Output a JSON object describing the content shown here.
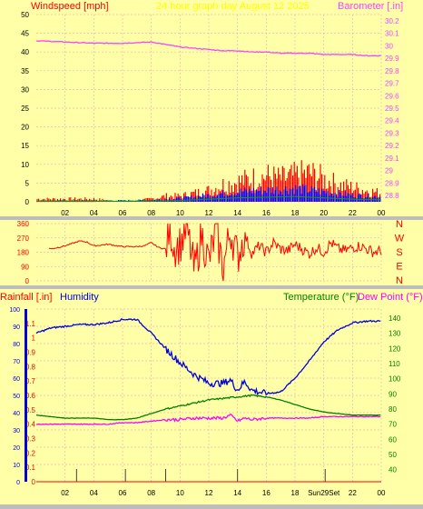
{
  "header": {
    "left_label": "Windspeed [mph]",
    "center_label": "24 hour graph day   August 12 2025",
    "right_label": "Barometer [.in]"
  },
  "colors": {
    "plot_bg": "#ffffa8",
    "frame_bg": "#bdbdbd",
    "grid": "#e8b8b8",
    "wind": "#ff0000",
    "gust_fill": "#0000ff",
    "wind_avg": "#00aa00",
    "barometer": "#ff40ff",
    "humidity": "#0000dd",
    "temperature": "#008000",
    "dewpoint": "#ff00ff",
    "rain": "#ff0000",
    "header_yellow": "#ffff00",
    "day_marker": "#404040"
  },
  "chart_data": [
    {
      "type": "line",
      "panel": "wind",
      "title": "24 hour graph day   August 12 2025",
      "x_ticks": [
        "02",
        "04",
        "06",
        "08",
        "10",
        "12",
        "14",
        "16",
        "18",
        "20",
        "22",
        "00"
      ],
      "xlim": [
        0,
        24
      ],
      "ylabel_left": "Windspeed [mph]",
      "ylim_left": [
        0,
        50
      ],
      "y_ticks_left": [
        "0",
        "5",
        "10",
        "15",
        "20",
        "25",
        "30",
        "35",
        "40",
        "45",
        "50"
      ],
      "ylabel_right": "Barometer [.in]",
      "ylim_right": [
        28.75,
        30.25
      ],
      "y_ticks_right": [
        "28.8",
        "28.9",
        "29",
        "29.1",
        "29.2",
        "29.3",
        "29.4",
        "29.5",
        "29.6",
        "29.7",
        "29.8",
        "29.9",
        "30",
        "30.1",
        "30.2"
      ],
      "grid": true,
      "series": [
        {
          "name": "Windspeed",
          "axis": "left",
          "x": [
            0,
            2,
            4,
            6,
            8,
            9,
            10,
            11,
            12,
            13,
            14,
            15,
            16,
            17,
            18,
            19,
            20,
            21,
            22,
            23,
            24
          ],
          "values": [
            1,
            1,
            1,
            0,
            1,
            2,
            2,
            3,
            4,
            6,
            7,
            8,
            9,
            8,
            9,
            10,
            8,
            6,
            5,
            4,
            3
          ]
        },
        {
          "name": "Wind average",
          "axis": "left",
          "x": [
            0,
            4,
            8,
            10,
            12,
            14,
            16,
            18,
            20,
            22,
            24
          ],
          "values": [
            0.3,
            0.3,
            0.5,
            1,
            2,
            3,
            3.5,
            4,
            3,
            2,
            1.5
          ]
        },
        {
          "name": "Barometer",
          "axis": "right",
          "x": [
            0,
            2,
            4,
            6,
            8,
            9,
            10,
            11,
            12,
            13,
            14,
            15,
            16,
            17,
            18,
            19,
            20,
            21,
            22,
            23,
            24
          ],
          "values": [
            30.04,
            30.03,
            30.02,
            30.02,
            30.03,
            30.01,
            29.99,
            29.98,
            29.97,
            29.96,
            29.96,
            29.95,
            29.95,
            29.94,
            29.94,
            29.94,
            29.93,
            29.93,
            29.93,
            29.92,
            29.92
          ]
        }
      ]
    },
    {
      "type": "line",
      "panel": "direction",
      "x_ticks": [],
      "xlim": [
        0,
        24
      ],
      "ylim": [
        0,
        360
      ],
      "y_ticks": [
        "0",
        "90",
        "180",
        "270",
        "360"
      ],
      "right_labels": [
        "N",
        "W",
        "S",
        "E",
        "N"
      ],
      "grid": true,
      "series": [
        {
          "name": "Wind direction",
          "x": [
            0,
            0.5,
            1,
            2,
            3,
            3.5,
            4,
            5,
            6,
            7,
            7.5,
            8,
            8.5,
            9,
            9.3,
            9.6,
            10,
            10.5,
            11,
            11.5,
            12,
            12.5,
            13,
            13.5,
            14,
            14.5,
            15,
            15.5,
            16,
            16.5,
            17,
            17.5,
            18,
            18.5,
            19,
            19.5,
            20,
            20.5,
            21,
            21.5,
            22,
            22.5,
            23,
            23.5,
            24
          ],
          "values": [
            180,
            230,
            200,
            220,
            250,
            245,
            220,
            230,
            215,
            215,
            220,
            240,
            210,
            200,
            330,
            210,
            230,
            320,
            60,
            290,
            120,
            310,
            80,
            320,
            150,
            290,
            170,
            220,
            180,
            240,
            200,
            190,
            230,
            200,
            170,
            210,
            180,
            240,
            200,
            190,
            210,
            220,
            200,
            180,
            190
          ]
        }
      ]
    },
    {
      "type": "line",
      "panel": "weather",
      "x_ticks": [
        "02",
        "04",
        "06",
        "08",
        "10",
        "12",
        "14",
        "16",
        "18",
        "Sun29Set",
        "22",
        "00"
      ],
      "xlim": [
        0,
        24
      ],
      "ylabel_left": "Rainfall [.in]",
      "ylabel_left2": "Humidity",
      "ylim_left_rain": [
        0,
        1.2
      ],
      "y_ticks_left_rain": [
        "0",
        "0.1",
        "0.2",
        "0.3",
        "0.4",
        "0.5",
        "0.6",
        "0.7",
        "0.8",
        "0.9",
        "1",
        "1.1"
      ],
      "ylim_left_humidity": [
        0,
        100
      ],
      "y_ticks_left_humidity": [
        "0",
        "10",
        "20",
        "30",
        "40",
        "50",
        "60",
        "70",
        "80",
        "90",
        "100"
      ],
      "ylabel_right": "Temperature (°F)",
      "ylabel_right2": "Dew Point (°F)",
      "ylim_right": [
        32,
        146
      ],
      "y_ticks_right": [
        "40",
        "50",
        "60",
        "70",
        "80",
        "90",
        "100",
        "110",
        "120",
        "130",
        "140"
      ],
      "grid": true,
      "series": [
        {
          "name": "Humidity",
          "axis": "humidity",
          "x": [
            0,
            1,
            2,
            3,
            4,
            5,
            6,
            7,
            8,
            9,
            10,
            11,
            12,
            13,
            13.5,
            14,
            14.5,
            15,
            16,
            17,
            18,
            19,
            20,
            21,
            22,
            23,
            24
          ],
          "values": [
            86,
            89,
            90,
            91,
            91,
            92,
            94,
            94,
            86,
            77,
            69,
            62,
            57,
            57,
            59,
            53,
            58,
            53,
            51,
            52,
            60,
            70,
            81,
            88,
            92,
            93,
            93
          ]
        },
        {
          "name": "Temperature",
          "axis": "right",
          "x": [
            0,
            1,
            2,
            3,
            4,
            5,
            6,
            7,
            8,
            9,
            10,
            11,
            12,
            13,
            14,
            15,
            16,
            17,
            18,
            19,
            20,
            21,
            22,
            23,
            24
          ],
          "values": [
            76,
            75,
            74,
            74,
            74,
            73,
            73,
            74,
            77,
            80,
            82,
            84,
            86,
            87,
            88,
            89,
            88,
            86,
            83,
            80,
            78,
            77,
            76,
            76,
            76
          ]
        },
        {
          "name": "Dew Point",
          "axis": "right",
          "x": [
            0,
            1,
            2,
            3,
            4,
            5,
            6,
            7,
            8,
            9,
            10,
            11,
            12,
            13,
            13.5,
            14,
            14.5,
            15,
            16,
            17,
            18,
            19,
            20,
            21,
            22,
            23,
            24
          ],
          "values": [
            70,
            70,
            70,
            70,
            70,
            70,
            71,
            71,
            72,
            73,
            73,
            74,
            74,
            74,
            76,
            72,
            74,
            73,
            74,
            74,
            74,
            74,
            75,
            75,
            75,
            75,
            75
          ]
        },
        {
          "name": "Rainfall",
          "axis": "rain",
          "x": [
            0,
            24
          ],
          "values": [
            0,
            0
          ]
        }
      ],
      "day_markers": [
        2.8,
        6.2,
        9.0,
        14.0,
        20.1
      ]
    }
  ]
}
